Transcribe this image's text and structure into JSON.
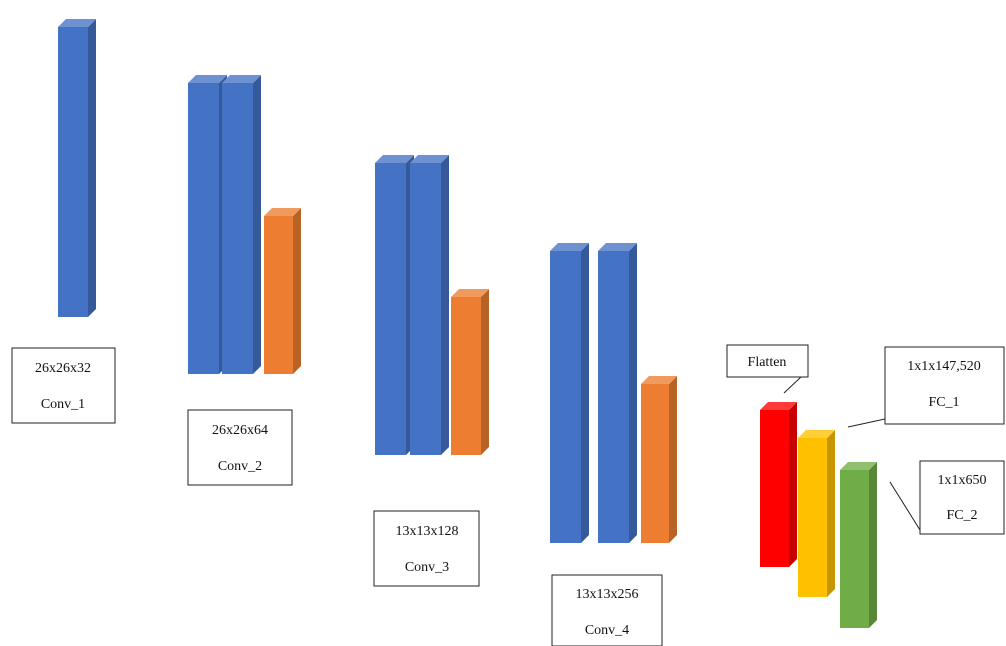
{
  "colors": {
    "conv": "#4472C4",
    "pool": "#ED7D31",
    "flatten": "#FF0000",
    "fc1": "#FFC000",
    "fc2": "#70AD47"
  },
  "stages": [
    {
      "name": "Conv_1",
      "dims": "26x26x32"
    },
    {
      "name": "Conv_2",
      "dims": "26x26x64"
    },
    {
      "name": "Conv_3",
      "dims": "13x13x128"
    },
    {
      "name": "Conv_4",
      "dims": "13x13x256"
    }
  ],
  "flatten": {
    "label": "Flatten"
  },
  "fc1": {
    "dims": "1x1x147,520",
    "name": "FC_1"
  },
  "fc2": {
    "dims": "1x1x650",
    "name": "FC_2"
  }
}
